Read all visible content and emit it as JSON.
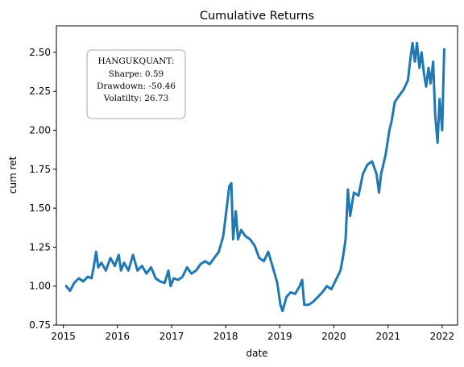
{
  "chart_data": {
    "type": "line",
    "title": "Cumulative Returns",
    "xlabel": "date",
    "ylabel": "cum ret",
    "xlim": [
      "2014-11-15",
      "2022-04-15"
    ],
    "ylim": [
      0.75,
      2.67
    ],
    "grid": false,
    "line_color": "#1f77b4",
    "x_ticks": [
      "2015",
      "2016",
      "2017",
      "2018",
      "2019",
      "2020",
      "2021",
      "2022"
    ],
    "y_ticks": [
      "0.75",
      "1.00",
      "1.25",
      "1.50",
      "1.75",
      "2.00",
      "2.25",
      "2.50"
    ],
    "annotation": {
      "placement": "upper-left",
      "lines": [
        "HANGUKQUANT:",
        "Sharpe: 0.59",
        "Drawdown: -50.46",
        "Volatilty: 26.73"
      ]
    },
    "series": [
      {
        "points": [
          [
            "2015-01-20",
            1.0
          ],
          [
            "2015-02-15",
            0.97
          ],
          [
            "2015-03-15",
            1.02
          ],
          [
            "2015-04-15",
            1.05
          ],
          [
            "2015-05-15",
            1.03
          ],
          [
            "2015-06-15",
            1.06
          ],
          [
            "2015-07-10",
            1.05
          ],
          [
            "2015-07-25",
            1.12
          ],
          [
            "2015-08-10",
            1.22
          ],
          [
            "2015-08-25",
            1.12
          ],
          [
            "2015-09-15",
            1.15
          ],
          [
            "2015-10-15",
            1.1
          ],
          [
            "2015-11-15",
            1.18
          ],
          [
            "2015-12-15",
            1.13
          ],
          [
            "2016-01-10",
            1.2
          ],
          [
            "2016-01-25",
            1.1
          ],
          [
            "2016-02-15",
            1.15
          ],
          [
            "2016-03-15",
            1.1
          ],
          [
            "2016-04-15",
            1.2
          ],
          [
            "2016-05-15",
            1.1
          ],
          [
            "2016-06-15",
            1.13
          ],
          [
            "2016-07-15",
            1.08
          ],
          [
            "2016-08-15",
            1.12
          ],
          [
            "2016-09-15",
            1.05
          ],
          [
            "2016-10-15",
            1.03
          ],
          [
            "2016-11-15",
            1.02
          ],
          [
            "2016-12-10",
            1.1
          ],
          [
            "2016-12-25",
            1.0
          ],
          [
            "2017-01-15",
            1.05
          ],
          [
            "2017-02-15",
            1.04
          ],
          [
            "2017-03-15",
            1.06
          ],
          [
            "2017-04-15",
            1.12
          ],
          [
            "2017-05-15",
            1.08
          ],
          [
            "2017-06-15",
            1.1
          ],
          [
            "2017-07-15",
            1.14
          ],
          [
            "2017-08-15",
            1.16
          ],
          [
            "2017-09-15",
            1.14
          ],
          [
            "2017-10-15",
            1.18
          ],
          [
            "2017-11-15",
            1.22
          ],
          [
            "2017-12-15",
            1.32
          ],
          [
            "2018-01-10",
            1.52
          ],
          [
            "2018-01-25",
            1.64
          ],
          [
            "2018-02-08",
            1.66
          ],
          [
            "2018-02-20",
            1.3
          ],
          [
            "2018-03-10",
            1.48
          ],
          [
            "2018-03-25",
            1.3
          ],
          [
            "2018-04-15",
            1.36
          ],
          [
            "2018-05-15",
            1.32
          ],
          [
            "2018-06-15",
            1.3
          ],
          [
            "2018-07-15",
            1.26
          ],
          [
            "2018-08-15",
            1.18
          ],
          [
            "2018-09-15",
            1.16
          ],
          [
            "2018-10-15",
            1.22
          ],
          [
            "2018-11-15",
            1.12
          ],
          [
            "2018-12-15",
            1.02
          ],
          [
            "2019-01-05",
            0.88
          ],
          [
            "2019-01-20",
            0.84
          ],
          [
            "2019-02-15",
            0.93
          ],
          [
            "2019-03-15",
            0.96
          ],
          [
            "2019-04-15",
            0.95
          ],
          [
            "2019-05-15",
            1.0
          ],
          [
            "2019-06-01",
            1.04
          ],
          [
            "2019-06-15",
            0.88
          ],
          [
            "2019-07-15",
            0.88
          ],
          [
            "2019-08-15",
            0.9
          ],
          [
            "2019-09-15",
            0.93
          ],
          [
            "2019-10-15",
            0.96
          ],
          [
            "2019-11-15",
            1.0
          ],
          [
            "2019-12-15",
            0.98
          ],
          [
            "2020-01-15",
            1.04
          ],
          [
            "2020-02-15",
            1.1
          ],
          [
            "2020-03-05",
            1.2
          ],
          [
            "2020-03-20",
            1.3
          ],
          [
            "2020-04-05",
            1.62
          ],
          [
            "2020-04-20",
            1.45
          ],
          [
            "2020-05-15",
            1.6
          ],
          [
            "2020-06-15",
            1.58
          ],
          [
            "2020-07-15",
            1.72
          ],
          [
            "2020-08-15",
            1.78
          ],
          [
            "2020-09-15",
            1.8
          ],
          [
            "2020-10-15",
            1.72
          ],
          [
            "2020-11-01",
            1.6
          ],
          [
            "2020-11-15",
            1.72
          ],
          [
            "2020-12-15",
            1.84
          ],
          [
            "2021-01-10",
            2.0
          ],
          [
            "2021-01-25",
            2.06
          ],
          [
            "2021-02-15",
            2.18
          ],
          [
            "2021-03-15",
            2.22
          ],
          [
            "2021-04-15",
            2.26
          ],
          [
            "2021-05-15",
            2.32
          ],
          [
            "2021-06-01",
            2.46
          ],
          [
            "2021-06-15",
            2.56
          ],
          [
            "2021-07-01",
            2.44
          ],
          [
            "2021-07-15",
            2.56
          ],
          [
            "2021-08-01",
            2.4
          ],
          [
            "2021-08-15",
            2.5
          ],
          [
            "2021-09-01",
            2.36
          ],
          [
            "2021-09-15",
            2.28
          ],
          [
            "2021-10-01",
            2.4
          ],
          [
            "2021-10-15",
            2.3
          ],
          [
            "2021-11-01",
            2.44
          ],
          [
            "2021-11-15",
            2.1
          ],
          [
            "2021-12-01",
            1.92
          ],
          [
            "2021-12-15",
            2.2
          ],
          [
            "2022-01-01",
            2.0
          ],
          [
            "2022-01-15",
            2.52
          ]
        ]
      }
    ]
  }
}
